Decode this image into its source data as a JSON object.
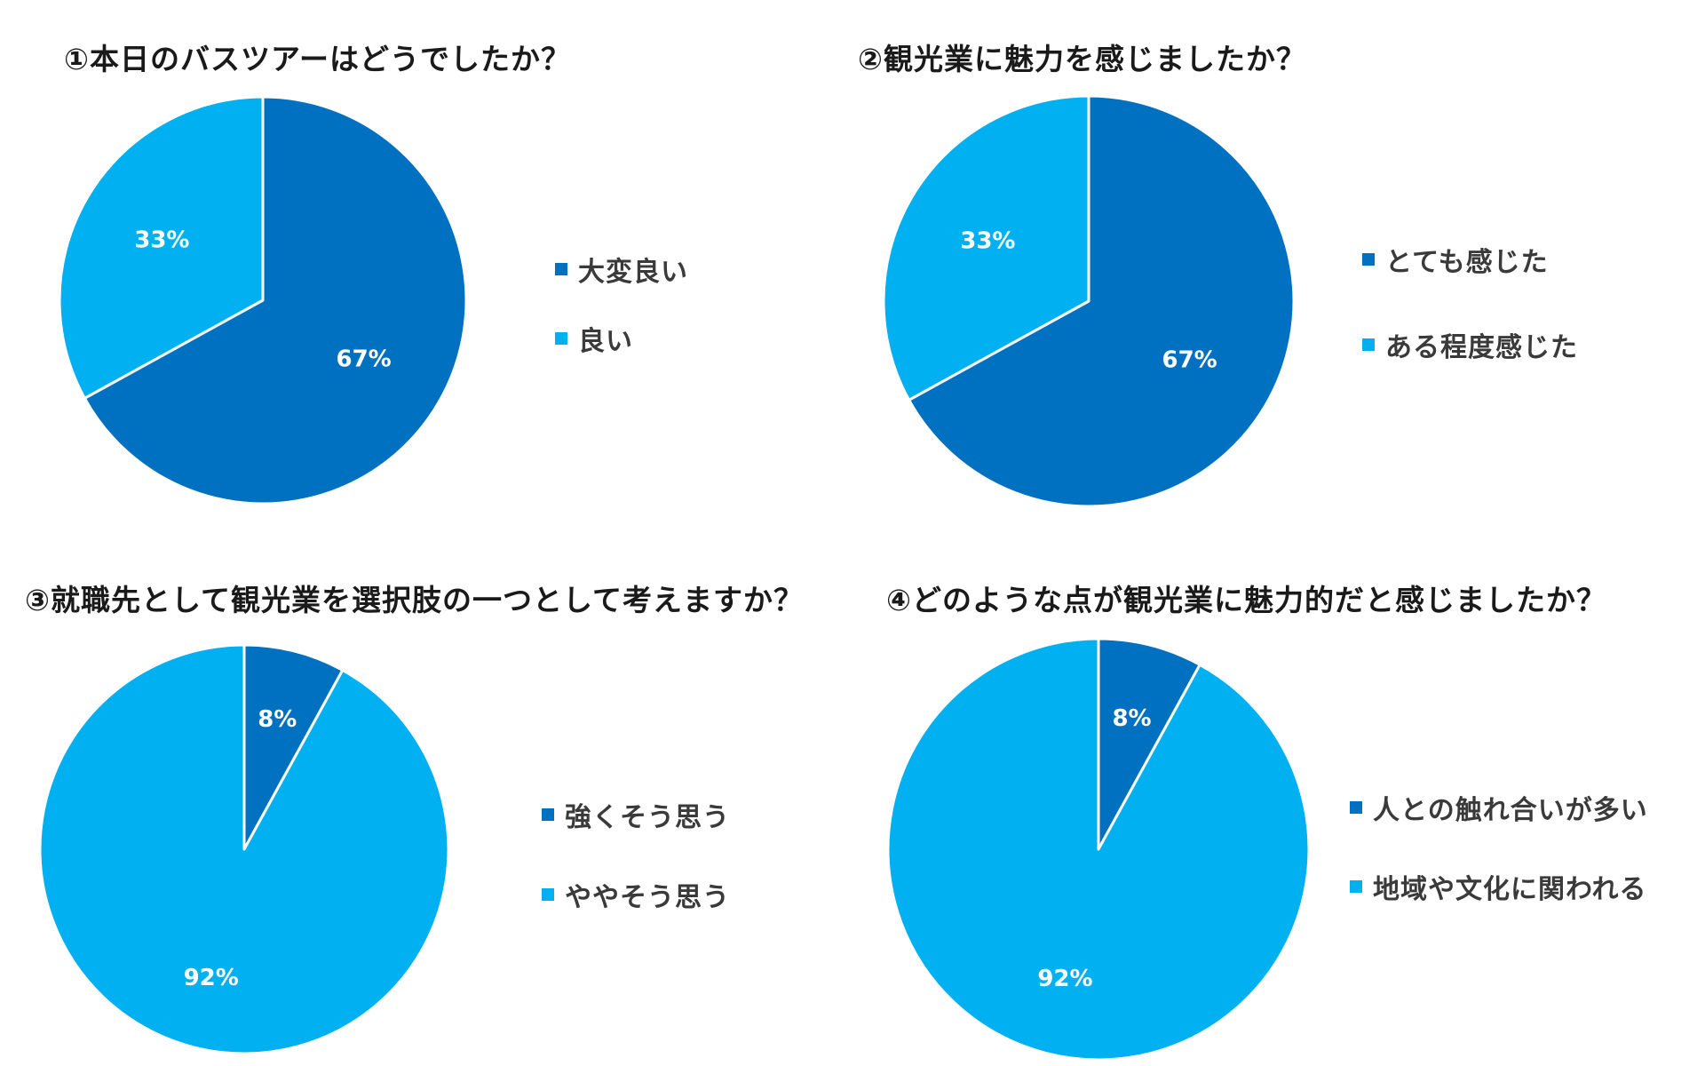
{
  "colors": {
    "dark_blue": "#0070C0",
    "light_blue": "#00B0F0",
    "divider": "#ffffff"
  },
  "chart_data": [
    {
      "type": "pie",
      "title": "①本日のバスツアーはどうでしたか？",
      "legend_position": "right",
      "slices": [
        {
          "label": "大変良い",
          "value": 67,
          "value_label": "67%",
          "color": "#0070C0"
        },
        {
          "label": "良い",
          "value": 33,
          "value_label": "33%",
          "color": "#00B0F0"
        }
      ]
    },
    {
      "type": "pie",
      "title": "②観光業に魅力を感じましたか？",
      "legend_position": "right",
      "slices": [
        {
          "label": "とても感じた",
          "value": 67,
          "value_label": "67%",
          "color": "#0070C0"
        },
        {
          "label": "ある程度感じた",
          "value": 33,
          "value_label": "33%",
          "color": "#00B0F0"
        }
      ]
    },
    {
      "type": "pie",
      "title": "③就職先として観光業を選択肢の一つとして考えますか？",
      "legend_position": "right",
      "slices": [
        {
          "label": "強くそう思う",
          "value": 8,
          "value_label": "8%",
          "color": "#0070C0"
        },
        {
          "label": "ややそう思う",
          "value": 92,
          "value_label": "92%",
          "color": "#00B0F0"
        }
      ]
    },
    {
      "type": "pie",
      "title": "④どのような点が観光業に魅力的だと感じましたか？",
      "legend_position": "right",
      "slices": [
        {
          "label": "人との触れ合いが多い",
          "value": 8,
          "value_label": "8%",
          "color": "#0070C0"
        },
        {
          "label": "地域や文化に関われる",
          "value": 92,
          "value_label": "92%",
          "color": "#00B0F0"
        }
      ]
    }
  ]
}
